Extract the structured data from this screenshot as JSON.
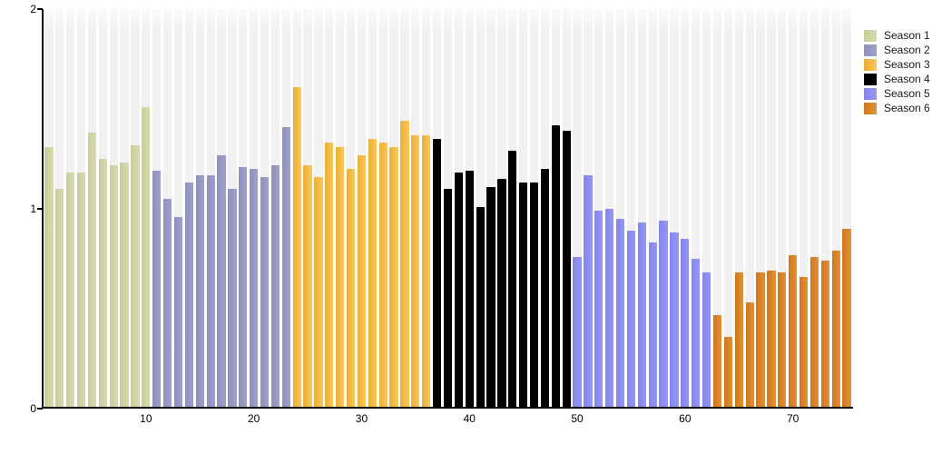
{
  "chart_data": {
    "type": "bar",
    "title": "",
    "xlabel": "",
    "ylabel": "",
    "ylim": [
      0,
      2
    ],
    "yticks": [
      0,
      1,
      2
    ],
    "xticks": [
      10,
      20,
      30,
      40,
      50,
      60,
      70
    ],
    "episode_count": 75,
    "grid": "off",
    "legend_position": "top-right",
    "background_stripe_color": "#f1f1f1",
    "axis_color": "#000000",
    "series": [
      {
        "name": "Season 1",
        "color": "#c9cd9b",
        "color_light": "#d8dbb0",
        "episodes_start": 1,
        "values": [
          1.31,
          1.1,
          1.18,
          1.18,
          1.38,
          1.25,
          1.22,
          1.23,
          1.32,
          1.51
        ]
      },
      {
        "name": "Season 2",
        "color": "#8f91bd",
        "color_light": "#9fa1cb",
        "episodes_start": 11,
        "values": [
          1.19,
          1.05,
          0.96,
          1.13,
          1.17,
          1.17,
          1.27,
          1.1,
          1.21,
          1.2,
          1.16,
          1.22,
          1.41
        ]
      },
      {
        "name": "Season 3",
        "color": "#eead33",
        "color_light": "#f7c95e",
        "episodes_start": 24,
        "values": [
          1.61,
          1.22,
          1.16,
          1.33,
          1.31,
          1.2,
          1.27,
          1.35,
          1.33,
          1.31,
          1.44,
          1.37,
          1.37
        ]
      },
      {
        "name": "Season 4",
        "color": "#000000",
        "color_light": "#000000",
        "episodes_start": 37,
        "values": [
          1.35,
          1.1,
          1.18,
          1.19,
          1.01,
          1.11,
          1.15,
          1.29,
          1.13,
          1.13,
          1.2,
          1.42,
          1.39
        ]
      },
      {
        "name": "Season 5",
        "color": "#8485ee",
        "color_light": "#9697f3",
        "episodes_start": 50,
        "values": [
          0.76,
          1.17,
          0.99,
          1.0,
          0.95,
          0.89,
          0.93,
          0.83,
          0.94,
          0.88,
          0.85,
          0.75,
          0.68
        ]
      },
      {
        "name": "Season 6",
        "color": "#d1771a",
        "color_light": "#e1913c",
        "episodes_start": 63,
        "values": [
          0.47,
          0.36,
          0.68,
          0.53,
          0.68,
          0.69,
          0.68,
          0.77,
          0.66,
          0.76,
          0.74,
          0.79,
          0.9
        ]
      }
    ]
  },
  "legend": {
    "items": [
      {
        "label": "Season 1"
      },
      {
        "label": "Season 2"
      },
      {
        "label": "Season 3"
      },
      {
        "label": "Season 4"
      },
      {
        "label": "Season 5"
      },
      {
        "label": "Season 6"
      }
    ]
  }
}
